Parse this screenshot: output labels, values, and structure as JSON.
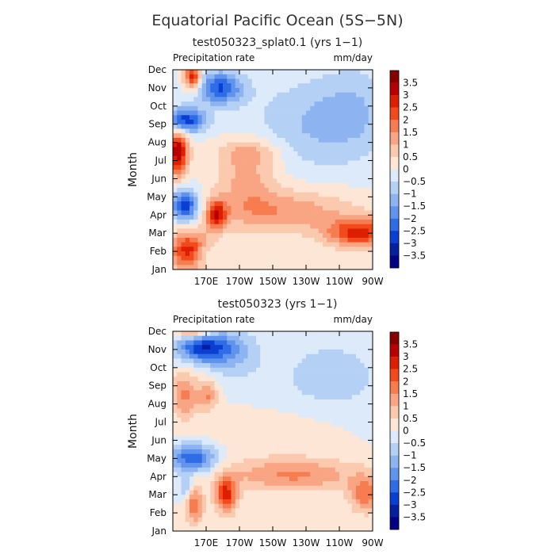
{
  "figure_title": "Equatorial Pacific Ocean (5S−5N)",
  "chart_data": [
    {
      "type": "heatmap",
      "title": "test050323_splat0.1 (yrs 1−1)",
      "variable_label": "Precipitation rate",
      "units_label": "mm/day",
      "ylabel": "Month",
      "xlabel": "",
      "y_ticks": [
        "Jan",
        "Feb",
        "Mar",
        "Apr",
        "May",
        "Jun",
        "Jul",
        "Aug",
        "Sep",
        "Oct",
        "Nov",
        "Dec"
      ],
      "x_ticks": [
        "170E",
        "170W",
        "150W",
        "130W",
        "110W",
        "90W"
      ],
      "x_tick_lon": [
        170,
        190,
        210,
        230,
        250,
        270
      ],
      "xlim": [
        150,
        270
      ],
      "colorbar_levels": [
        "3.5",
        "3",
        "2.5",
        "2",
        "1.5",
        "1",
        "0.5",
        "0",
        "−0.5",
        "−1",
        "−1.5",
        "−2",
        "−2.5",
        "−3",
        "−3.5"
      ],
      "features": [
        {
          "lon": 160,
          "month": 1,
          "lw": 12,
          "mw": 1.1,
          "amp": 2.8
        },
        {
          "lon": 153,
          "month": 6.5,
          "lw": 6,
          "mw": 1.3,
          "amp": 3.5
        },
        {
          "lon": 157,
          "month": 3.5,
          "lw": 9,
          "mw": 0.9,
          "amp": -3.0
        },
        {
          "lon": 157,
          "month": 8.2,
          "lw": 12,
          "mw": 0.7,
          "amp": -3.0
        },
        {
          "lon": 178,
          "month": 10,
          "lw": 14,
          "mw": 0.9,
          "amp": -2.5
        },
        {
          "lon": 162,
          "month": 10.6,
          "lw": 5,
          "mw": 0.7,
          "amp": 3.0
        },
        {
          "lon": 176,
          "month": 3,
          "lw": 6,
          "mw": 0.8,
          "amp": 2.6
        },
        {
          "lon": 215,
          "month": 3.2,
          "lw": 45,
          "mw": 1.2,
          "amp": 1.4
        },
        {
          "lon": 262,
          "month": 2,
          "lw": 20,
          "mw": 0.8,
          "amp": 2.6
        },
        {
          "lon": 195,
          "month": 5.2,
          "lw": 18,
          "mw": 1.8,
          "amp": 1.2
        },
        {
          "lon": 235,
          "month": 8,
          "lw": 40,
          "mw": 2.5,
          "amp": -1.0
        },
        {
          "lon": 260,
          "month": 9,
          "lw": 22,
          "mw": 2.5,
          "amp": -0.6
        },
        {
          "lon": 168,
          "month": 0.8,
          "lw": 6,
          "mw": 0.6,
          "amp": -1.0
        },
        {
          "lon": 196,
          "month": 6.5,
          "lw": 20,
          "mw": 0.7,
          "amp": 0.8
        }
      ]
    },
    {
      "type": "heatmap",
      "title": "test050323 (yrs 1−1)",
      "variable_label": "Precipitation rate",
      "units_label": "mm/day",
      "ylabel": "Month",
      "xlabel": "",
      "y_ticks": [
        "Jan",
        "Feb",
        "Mar",
        "Apr",
        "May",
        "Jun",
        "Jul",
        "Aug",
        "Sep",
        "Oct",
        "Nov",
        "Dec"
      ],
      "x_ticks": [
        "170E",
        "170W",
        "150W",
        "130W",
        "110W",
        "90W"
      ],
      "x_tick_lon": [
        170,
        190,
        210,
        230,
        250,
        270
      ],
      "xlim": [
        150,
        270
      ],
      "colorbar_levels": [
        "3.5",
        "3",
        "2.5",
        "2",
        "1.5",
        "1",
        "0.5",
        "0",
        "−0.5",
        "−1",
        "−1.5",
        "−2",
        "−2.5",
        "−3",
        "−3.5"
      ],
      "features": [
        {
          "lon": 162,
          "month": 11.2,
          "lw": 10,
          "mw": 0.5,
          "amp": 3.0
        },
        {
          "lon": 168,
          "month": 10.1,
          "lw": 16,
          "mw": 0.8,
          "amp": -2.8
        },
        {
          "lon": 186,
          "month": 9.8,
          "lw": 16,
          "mw": 1.4,
          "amp": -1.0
        },
        {
          "lon": 162,
          "month": 4.0,
          "lw": 14,
          "mw": 0.8,
          "amp": -2.5
        },
        {
          "lon": 157,
          "month": 7.5,
          "lw": 8,
          "mw": 1.3,
          "amp": 1.6
        },
        {
          "lon": 171,
          "month": 7.5,
          "lw": 6,
          "mw": 0.8,
          "amp": 1.5
        },
        {
          "lon": 182,
          "month": 2,
          "lw": 7,
          "mw": 1.0,
          "amp": 2.6
        },
        {
          "lon": 222,
          "month": 3.1,
          "lw": 40,
          "mw": 0.9,
          "amp": 1.6
        },
        {
          "lon": 266,
          "month": 2.0,
          "lw": 10,
          "mw": 1.0,
          "amp": 1.8
        },
        {
          "lon": 212,
          "month": 5.5,
          "lw": 40,
          "mw": 1.2,
          "amp": 0.5
        },
        {
          "lon": 245,
          "month": 8.5,
          "lw": 40,
          "mw": 2.5,
          "amp": -0.7
        },
        {
          "lon": 163,
          "month": 1.4,
          "lw": 5,
          "mw": 1.0,
          "amp": 2.0
        },
        {
          "lon": 158,
          "month": 2.3,
          "lw": 4,
          "mw": 0.6,
          "amp": -1.2
        }
      ]
    }
  ]
}
